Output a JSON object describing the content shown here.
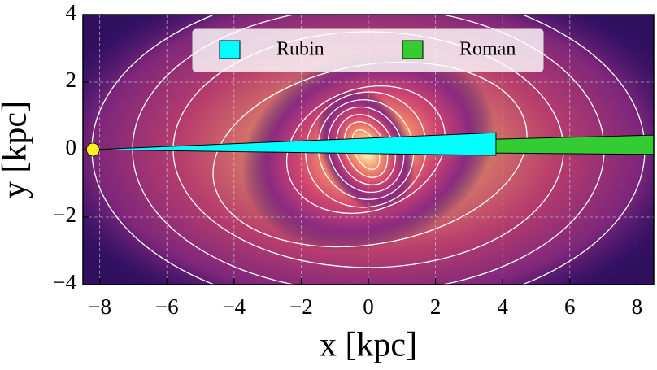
{
  "chart_data": {
    "type": "density-map",
    "x_label": "x [kpc]",
    "y_label": "y [kpc]",
    "xlim": [
      -8.5,
      8.5
    ],
    "ylim": [
      -4,
      4
    ],
    "xticks": [
      {
        "value": -8,
        "label": "−8"
      },
      {
        "value": -6,
        "label": "−6"
      },
      {
        "value": -4,
        "label": "−4"
      },
      {
        "value": -2,
        "label": "−2"
      },
      0,
      2,
      4,
      6,
      8
    ],
    "yticks": [
      {
        "value": -4,
        "label": "−4"
      },
      {
        "value": -2,
        "label": "−2"
      },
      0,
      2,
      4
    ],
    "grid": true,
    "legend": "upper center",
    "series": [
      {
        "name": "Rubin",
        "color": "#00ffff",
        "x": [
          -8.2,
          3.8,
          3.8
        ],
        "y": [
          0,
          0.5,
          -0.17
        ]
      },
      {
        "name": "Roman",
        "color": "#33cc33",
        "x": [
          -8.2,
          8.5,
          8.5
        ],
        "y": [
          0,
          0.43,
          -0.14
        ]
      }
    ],
    "observer": {
      "x": -8.2,
      "y": 0,
      "color": "#ffee22"
    }
  }
}
